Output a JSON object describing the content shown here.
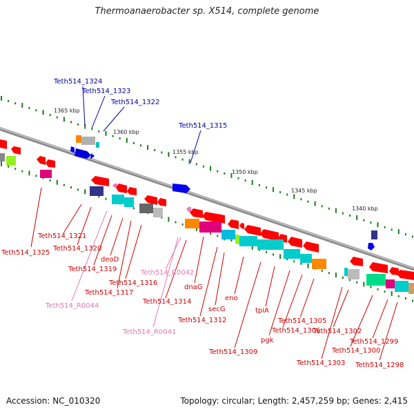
{
  "title": "Thermoanaerobacter sp. X514, complete genome",
  "footer": {
    "accession": "Accession: NC_010320",
    "summary": "Topology: circular; Length: 2,457,259 bp; Genes: 2,415"
  },
  "ruler": [
    {
      "label": "1365 kbp"
    },
    {
      "label": "1360 kbp"
    },
    {
      "label": "1355 kbp"
    },
    {
      "label": "1350 kbp"
    },
    {
      "label": "1345 kbp"
    },
    {
      "label": "1340 kbp"
    }
  ],
  "colors": {
    "cds": "#ff0000",
    "trna": "#e77fb8",
    "cds_top": "#0000cc",
    "label_red": "#cc0000",
    "label_pink": "#e077b0",
    "label_blue": "#000099",
    "ticks": "#1a7a1a",
    "backbone": "#808080"
  },
  "labels_top": [
    {
      "text": "Teth514_1324"
    },
    {
      "text": "Teth514_1323"
    },
    {
      "text": "Teth514_1322"
    },
    {
      "text": "Teth514_1315"
    }
  ],
  "labels_bottom": [
    {
      "text": "Teth514_1325",
      "kind": "cds"
    },
    {
      "text": "Teth514_1321",
      "kind": "cds"
    },
    {
      "text": "Teth514_1320",
      "kind": "cds"
    },
    {
      "text": "deoD",
      "kind": "cds"
    },
    {
      "text": "Teth514_1319",
      "kind": "cds"
    },
    {
      "text": "Teth514_R0044",
      "kind": "rna"
    },
    {
      "text": "Teth514_1316",
      "kind": "cds"
    },
    {
      "text": "Teth514_1317",
      "kind": "cds"
    },
    {
      "text": "Teth514_R0042",
      "kind": "rna"
    },
    {
      "text": "dnaG",
      "kind": "cds"
    },
    {
      "text": "Teth514_1314",
      "kind": "cds"
    },
    {
      "text": "Teth514_R0041",
      "kind": "rna"
    },
    {
      "text": "secG",
      "kind": "cds"
    },
    {
      "text": "eno",
      "kind": "cds"
    },
    {
      "text": "Teth514_1312",
      "kind": "cds"
    },
    {
      "text": "tpiA",
      "kind": "cds"
    },
    {
      "text": "Teth514_1309",
      "kind": "cds"
    },
    {
      "text": "pgk",
      "kind": "cds"
    },
    {
      "text": "Teth514_1306",
      "kind": "cds"
    },
    {
      "text": "Teth514_1305",
      "kind": "cds"
    },
    {
      "text": "Teth514_1303",
      "kind": "cds"
    },
    {
      "text": "Teth514_1302",
      "kind": "cds"
    },
    {
      "text": "Teth514_1300",
      "kind": "cds"
    },
    {
      "text": "Teth514_1299",
      "kind": "cds"
    },
    {
      "text": "Teth514_1298",
      "kind": "cds"
    }
  ]
}
